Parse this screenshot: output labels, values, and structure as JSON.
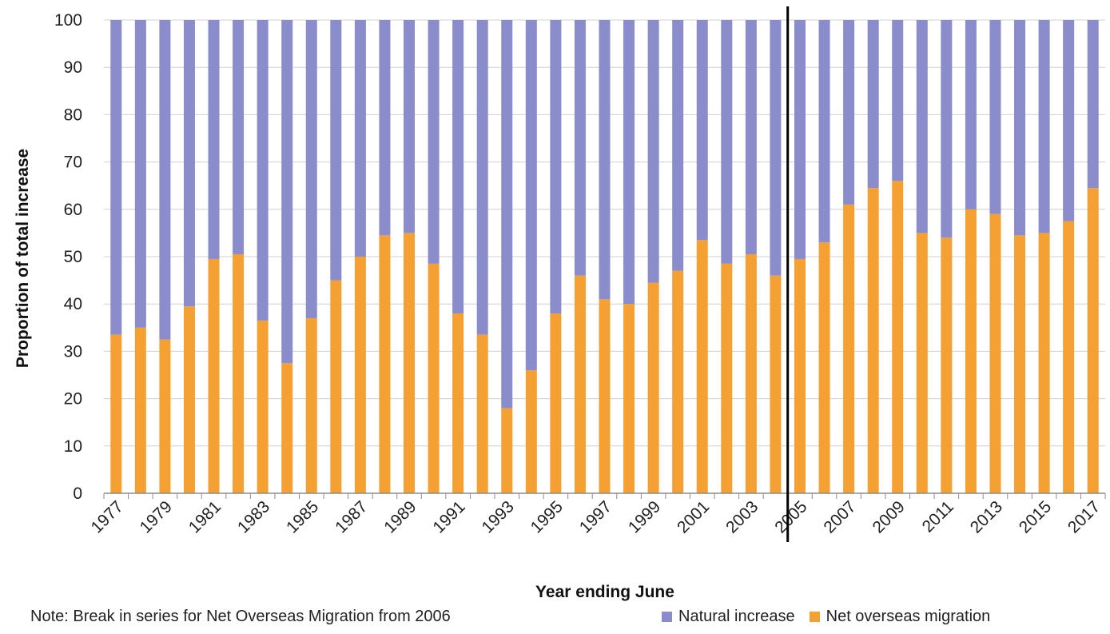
{
  "chart_data": {
    "type": "bar",
    "stacked": true,
    "xlabel": "Year ending June",
    "ylabel": "Proportion of total increase",
    "ylim": [
      0,
      100
    ],
    "yticks": [
      0,
      10,
      20,
      30,
      40,
      50,
      60,
      70,
      80,
      90,
      100
    ],
    "grid": true,
    "legend_position": "bottom-right",
    "categories": [
      "1977",
      "1978",
      "1979",
      "1980",
      "1981",
      "1982",
      "1983",
      "1984",
      "1985",
      "1986",
      "1987",
      "1988",
      "1989",
      "1990",
      "1991",
      "1992",
      "1993",
      "1994",
      "1995",
      "1996",
      "1997",
      "1998",
      "1999",
      "2000",
      "2001",
      "2002",
      "2003",
      "2004",
      "2005",
      "2006",
      "2007",
      "2008",
      "2009",
      "2010",
      "2011",
      "2012",
      "2013",
      "2014",
      "2015",
      "2016",
      "2017"
    ],
    "tick_labels": [
      "1977",
      "1979",
      "1981",
      "1983",
      "1985",
      "1987",
      "1989",
      "1991",
      "1993",
      "1995",
      "1997",
      "1999",
      "2001",
      "2003",
      "2005",
      "2007",
      "2009",
      "2011",
      "2013",
      "2015",
      "2017"
    ],
    "series": [
      {
        "name": "Net overseas migration",
        "color": "#F5A033",
        "values": [
          33.5,
          35,
          32.5,
          39.5,
          49.5,
          50.5,
          36.5,
          27.5,
          37,
          45,
          50,
          54.5,
          55,
          48.5,
          38,
          33.5,
          18,
          26,
          38,
          46,
          41,
          40,
          44.5,
          47,
          53.5,
          48.5,
          50.5,
          46,
          49.5,
          53,
          61,
          64.5,
          66,
          55,
          54,
          60,
          59,
          54.5,
          55,
          57.5,
          64.5
        ]
      },
      {
        "name": "Natural increase",
        "color": "#8A8CCB",
        "values": [
          66.5,
          65,
          67.5,
          60.5,
          50.5,
          49.5,
          63.5,
          72.5,
          63,
          55,
          50,
          45.5,
          45,
          51.5,
          62,
          66.5,
          82,
          74,
          62,
          54,
          59,
          60,
          55.5,
          53,
          46.5,
          51.5,
          49.5,
          54,
          50.5,
          47,
          39,
          35.5,
          34,
          45,
          46,
          40,
          41,
          45.5,
          45,
          42.5,
          35.5
        ]
      }
    ],
    "annotations": [
      {
        "type": "vertical-line",
        "position": "between 2004 and 2005",
        "color": "#000000"
      }
    ],
    "note": "Note: Break in series for Net Overseas Migration from 2006"
  }
}
